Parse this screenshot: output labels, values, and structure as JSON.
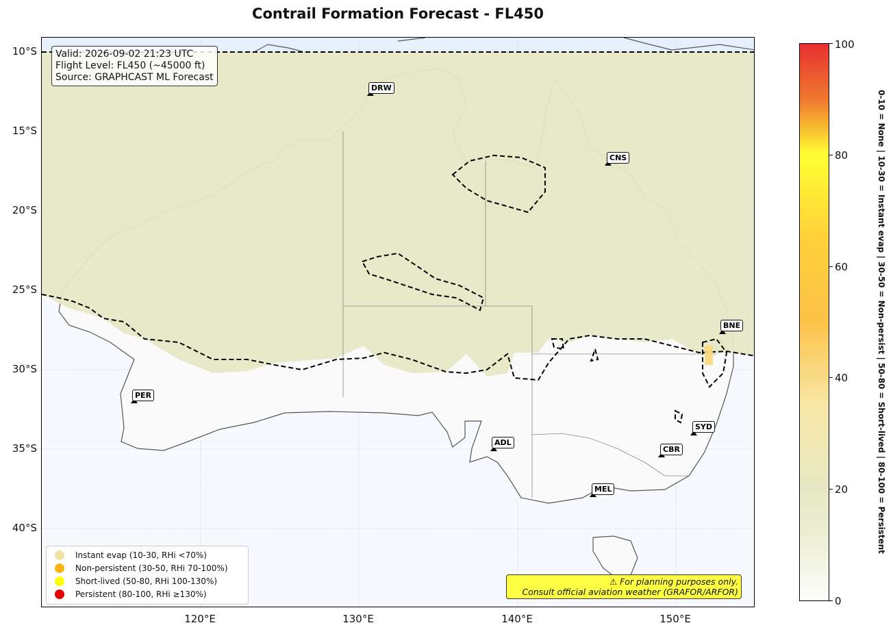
{
  "title": "Contrail Formation Forecast - FL450",
  "info_box": {
    "valid": "Valid: 2026-09-02 21:23 UTC",
    "flight_level": "Flight Level: FL450 (~45000 ft)",
    "source": "Source: GRAPHCAST ML Forecast"
  },
  "lat_labels": [
    "10°S",
    "15°S",
    "20°S",
    "25°S",
    "30°S",
    "35°S",
    "40°S"
  ],
  "lon_labels": [
    "120°E",
    "130°E",
    "140°E",
    "150°E"
  ],
  "airports": [
    {
      "code": "DRW",
      "lon": 130.9,
      "lat": -12.4
    },
    {
      "code": "CNS",
      "lon": 145.75,
      "lat": -16.9
    },
    {
      "code": "BNE",
      "lon": 153.1,
      "lat": -27.4
    },
    {
      "code": "PER",
      "lon": 115.97,
      "lat": -31.9
    },
    {
      "code": "SYD",
      "lon": 151.18,
      "lat": -33.9
    },
    {
      "code": "ADL",
      "lon": 138.53,
      "lat": -34.9
    },
    {
      "code": "CBR",
      "lon": 149.2,
      "lat": -35.3
    },
    {
      "code": "MEL",
      "lon": 144.84,
      "lat": -37.7
    }
  ],
  "legend": [
    {
      "label": "Instant evap (10-30, RHi <70%)",
      "color": "#f1e2a4"
    },
    {
      "label": "Non-persistent (30-50, RHi 70-100%)",
      "color": "#fbb414"
    },
    {
      "label": "Short-lived (50-80, RHi 100-130%)",
      "color": "#ffff00"
    },
    {
      "label": "Persistent (80-100, RHi ≥130%)",
      "color": "#e60000"
    }
  ],
  "disclaimer": {
    "line1": "⚠ For planning purposes only.",
    "line2": "Consult official aviation weather (GRAFOR/ARFOR)"
  },
  "colorbar": {
    "ticks": [
      "0",
      "20",
      "40",
      "60",
      "80",
      "100"
    ],
    "description": "0-10 = None  |  10-30 = Instant evap  |  30-50 = Non-persist  |  50-80 = Short-lived  |  80-100 = Persistent"
  },
  "map": {
    "extent": {
      "lon_min": 110,
      "lon_max": 155,
      "lat_min": -45,
      "lat_max": -9
    },
    "colors": {
      "land_fill": "#e6e8c4",
      "ocean_fill": "#f4f8fc",
      "polar_band": "#e6f0fc",
      "coast": "#555555",
      "contour": "#000000"
    }
  }
}
